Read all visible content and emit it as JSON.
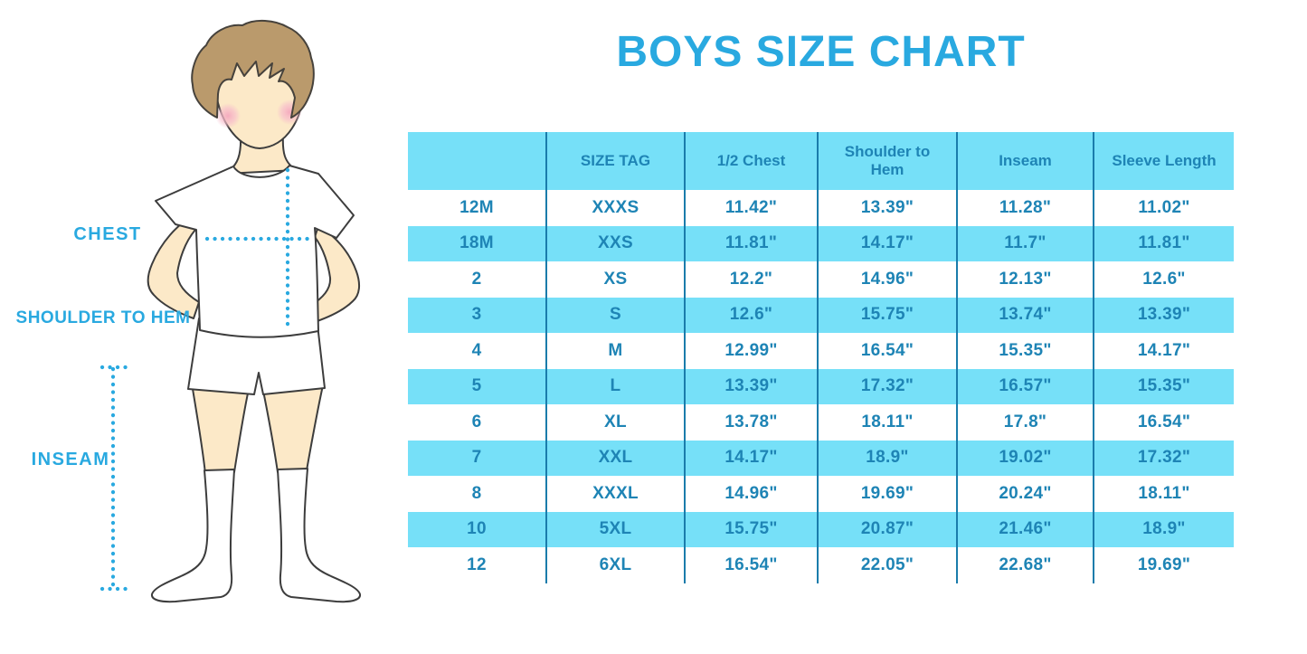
{
  "title": "BOYS SIZE CHART",
  "figure": {
    "labels": {
      "chest": "CHEST",
      "shoulder_to_hem": "SHOULDER TO HEM",
      "inseam": "INSEAM"
    }
  },
  "colors": {
    "accent_blue": "#29a9e0",
    "band_cyan": "#76e0f8",
    "table_text_blue": "#1e84b5",
    "divider_blue": "#1a7cab",
    "hair_brown": "#ba9a6c",
    "skin": "#fce9c8",
    "blush_pink": "#f5a8be"
  },
  "chart_data": {
    "type": "table",
    "title": "BOYS SIZE CHART",
    "columns": [
      "",
      "SIZE TAG",
      "1/2 Chest",
      "Shoulder to Hem",
      "Inseam",
      "Sleeve Length"
    ],
    "rows": [
      [
        "12M",
        "XXXS",
        "11.42\"",
        "13.39\"",
        "11.28\"",
        "11.02\""
      ],
      [
        "18M",
        "XXS",
        "11.81\"",
        "14.17\"",
        "11.7\"",
        "11.81\""
      ],
      [
        "2",
        "XS",
        "12.2\"",
        "14.96\"",
        "12.13\"",
        "12.6\""
      ],
      [
        "3",
        "S",
        "12.6\"",
        "15.75\"",
        "13.74\"",
        "13.39\""
      ],
      [
        "4",
        "M",
        "12.99\"",
        "16.54\"",
        "15.35\"",
        "14.17\""
      ],
      [
        "5",
        "L",
        "13.39\"",
        "17.32\"",
        "16.57\"",
        "15.35\""
      ],
      [
        "6",
        "XL",
        "13.78\"",
        "18.11\"",
        "17.8\"",
        "16.54\""
      ],
      [
        "7",
        "XXL",
        "14.17\"",
        "18.9\"",
        "19.02\"",
        "17.32\""
      ],
      [
        "8",
        "XXXL",
        "14.96\"",
        "19.69\"",
        "20.24\"",
        "18.11\""
      ],
      [
        "10",
        "5XL",
        "15.75\"",
        "20.87\"",
        "21.46\"",
        "18.9\""
      ],
      [
        "12",
        "6XL",
        "16.54\"",
        "22.05\"",
        "22.68\"",
        "19.69\""
      ]
    ],
    "layout_hints": {
      "header_fill": "banded cyan",
      "row_banding": "white / cyan alternating starting white",
      "column_dividers": true,
      "outer_border": false
    }
  }
}
